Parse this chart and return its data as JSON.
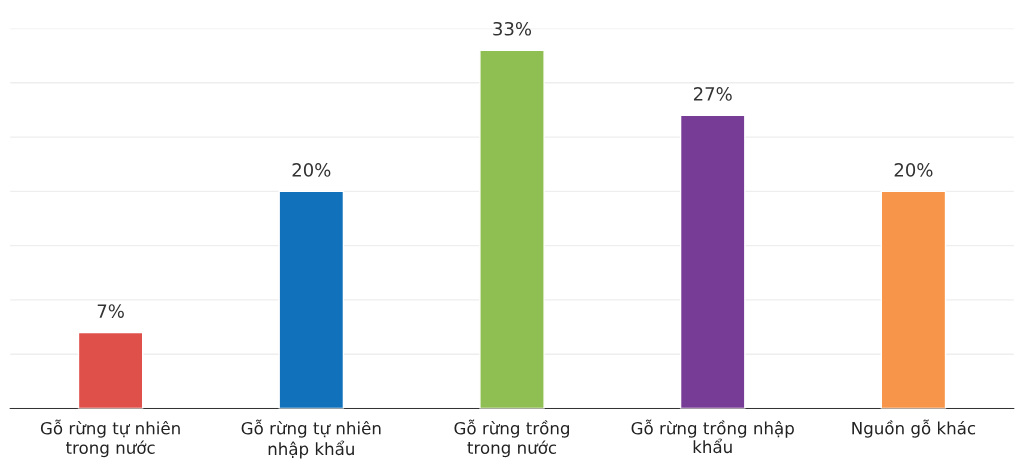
{
  "chart_data": {
    "type": "bar",
    "categories": [
      "Gỗ rừng tự nhiên\ntrong nước",
      "Gỗ rừng tự nhiên\nnhập khẩu",
      "Gỗ rừng trồng\ntrong nước",
      "Gỗ rừng trồng nhập\nkhẩu",
      "Nguồn gỗ khác"
    ],
    "values": [
      7,
      20,
      33,
      27,
      20
    ],
    "colors": [
      "#e0504b",
      "#1172bb",
      "#8fbf52",
      "#773d96",
      "#f7964a"
    ],
    "value_labels": [
      "7%",
      "20%",
      "33%",
      "27%",
      "20%"
    ],
    "ylim": [
      0,
      35
    ],
    "yticks": [
      {
        "value": 0,
        "label": null
      },
      {
        "value": 5,
        "label": null
      },
      {
        "value": 10,
        "label": null
      },
      {
        "value": 15,
        "label": null
      },
      {
        "value": 20,
        "label": null
      },
      {
        "value": 25,
        "label": null
      },
      {
        "value": 30,
        "label": null
      },
      {
        "value": 35,
        "label": null
      }
    ],
    "grid": "y",
    "tick_labels": "x"
  }
}
